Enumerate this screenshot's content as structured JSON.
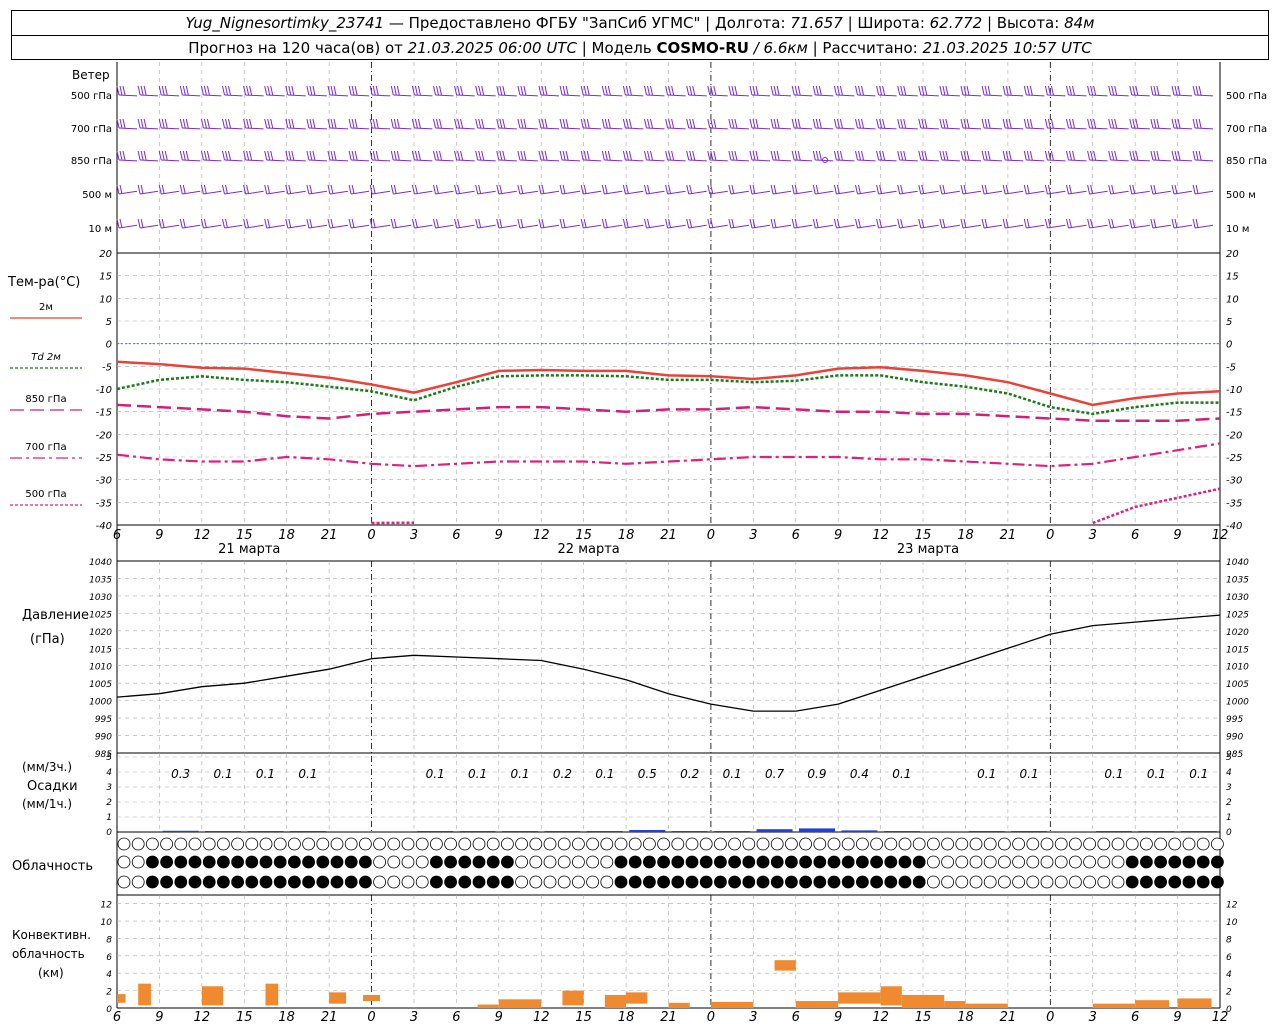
{
  "header": {
    "station": "Yug_Nignesortimky_23741",
    "dash": "—",
    "provided": "Предоставлено ФГБУ \"ЗапСиб УГМС\"",
    "lon_label": "Долгота:",
    "lon": "71.657",
    "lat_label": "Широта:",
    "lat": "62.772",
    "alt_label": "Высота:",
    "alt": "84м",
    "forecast_label": "Прогноз на 120 часа(ов) от",
    "forecast_from": "21.03.2025 06:00 UTC",
    "model_label": "| Модель",
    "model": "COSMO-RU",
    "resolution": "/ 6.6км",
    "calc_label": "| Рассчитано:",
    "calc_time": "21.03.2025 10:57 UTC"
  },
  "wind_panel": {
    "title": "Ветер",
    "levels": [
      "500 гПа",
      "700 гПа",
      "850 гПа",
      "500 м",
      "10 м"
    ],
    "colors": {
      "barb": "#7b2bd6"
    }
  },
  "x_axis": {
    "hour_labels": [
      "6",
      "9",
      "12",
      "15",
      "18",
      "21",
      "0",
      "3",
      "6",
      "9",
      "12",
      "15",
      "18",
      "21",
      "0",
      "3",
      "6",
      "9",
      "12",
      "15",
      "18",
      "21",
      "0",
      "3",
      "6",
      "9",
      "12"
    ],
    "day_labels": [
      "21 марта",
      "22 марта",
      "23 марта"
    ]
  },
  "temp_panel": {
    "title": "Тем-ра(°C)",
    "legend": [
      "2м",
      "Td  2м",
      "850 гПа",
      "700 гПа",
      "500 гПа"
    ],
    "y_ticks": [
      "20",
      "15",
      "10",
      "5",
      "0",
      "-5",
      "-10",
      "-15",
      "-20",
      "-25",
      "-30",
      "-35",
      "-40"
    ],
    "colors": {
      "t2m": "#e8423a",
      "td": "#1a7a1a",
      "t850": "#d0207a",
      "t700": "#e0207a",
      "t500": "#e0207a",
      "zero": "#3a5fd6"
    }
  },
  "pressure_panel": {
    "title": "Давление",
    "unit": "(гПа)",
    "y_ticks": [
      "1040",
      "1035",
      "1030",
      "1025",
      "1020",
      "1015",
      "1010",
      "1005",
      "1000",
      "995",
      "990",
      "985"
    ]
  },
  "precip_panel": {
    "unit_top": "(мм/3ч.)",
    "title": "Осадки",
    "unit_bottom": "(мм/1ч.)",
    "y_ticks": [
      "5",
      "4",
      "3",
      "2",
      "1",
      "0"
    ],
    "sums": [
      "0.3",
      "0.1",
      "0.1",
      "0.1",
      "0.1",
      "0.1",
      "0.1",
      "0.2",
      "0.1",
      "0.5",
      "0.2",
      "0.1",
      "0.7",
      "0.9",
      "0.4",
      "0.1",
      "0.1",
      "0.1",
      "0.1",
      "0.1",
      "0.1"
    ],
    "color": "#1f3fe0"
  },
  "cloud_panel": {
    "title": "Облачность"
  },
  "conv_panel": {
    "title1": "Конвективн.",
    "title2": "облачность",
    "unit": "(км)",
    "y_ticks": [
      "12",
      "10",
      "8",
      "6",
      "4",
      "2",
      "0"
    ],
    "color": "#f08a30"
  },
  "chart_data": {
    "type": "line",
    "x": [
      "21.03 06",
      "21.03 09",
      "21.03 12",
      "21.03 15",
      "21.03 18",
      "21.03 21",
      "22.03 00",
      "22.03 03",
      "22.03 06",
      "22.03 09",
      "22.03 12",
      "22.03 15",
      "22.03 18",
      "22.03 21",
      "23.03 00",
      "23.03 03",
      "23.03 06",
      "23.03 09",
      "23.03 12",
      "23.03 15",
      "23.03 18",
      "23.03 21",
      "24.03 00",
      "24.03 03",
      "24.03 06",
      "24.03 09",
      "24.03 12"
    ],
    "series": [
      {
        "name": "2м",
        "values": [
          -4,
          -4.5,
          -5.3,
          -5.5,
          -6.5,
          -7.5,
          -9,
          -10.8,
          -8.5,
          -6,
          -5.8,
          -6,
          -6,
          -7,
          -7.2,
          -7.8,
          -7,
          -5.5,
          -5.2,
          -6,
          -7,
          -8.5,
          -11,
          -13.5,
          -12,
          -11,
          -10.5
        ]
      },
      {
        "name": "Td  2м",
        "values": [
          -10,
          -8,
          -7.2,
          -8,
          -8.5,
          -9.5,
          -10.5,
          -12.5,
          -9.5,
          -7.2,
          -7,
          -7,
          -7.2,
          -8,
          -8,
          -8.5,
          -8.2,
          -7,
          -7,
          -8.5,
          -9.5,
          -11,
          -14,
          -15.5,
          -14,
          -13,
          -13
        ]
      },
      {
        "name": "850 гПа",
        "values": [
          -13.5,
          -14,
          -14.5,
          -15,
          -16,
          -16.5,
          -15.5,
          -15,
          -14.5,
          -14,
          -14,
          -14.5,
          -15,
          -14.5,
          -14.5,
          -14,
          -14.5,
          -15,
          -15,
          -15.5,
          -15.5,
          -16,
          -16.5,
          -17,
          -17,
          -17,
          -16.5
        ]
      },
      {
        "name": "700 гПа",
        "values": [
          -24.5,
          -25.5,
          -26,
          -26,
          -25,
          -25.5,
          -26.5,
          -27,
          -26.5,
          -26,
          -26,
          -26,
          -26.5,
          -26,
          -25.5,
          -25,
          -25,
          -25,
          -25.5,
          -25.5,
          -26,
          -26.5,
          -27,
          -26.5,
          -25,
          -23.5,
          -22
        ]
      },
      {
        "name": "500 гПа",
        "values": [
          null,
          null,
          null,
          null,
          null,
          null,
          -40,
          -39.5,
          null,
          null,
          null,
          null,
          null,
          null,
          null,
          null,
          null,
          null,
          null,
          null,
          null,
          null,
          null,
          -40,
          -36,
          -34,
          -32
        ]
      },
      {
        "name": "Давление",
        "values": [
          1001,
          1002,
          1004,
          1005,
          1007,
          1009,
          1012,
          1013,
          1012.5,
          1012,
          1011.5,
          1009,
          1006,
          1002,
          999,
          997,
          997,
          999,
          1003,
          1007,
          1011,
          1015,
          1019,
          1021.5,
          1022.5,
          1023.5,
          1024.5
        ]
      }
    ],
    "precip_3h": [
      0.3,
      0.1,
      0.1,
      0.1,
      0.1,
      0.1,
      0.1,
      0.2,
      0.1,
      0.5,
      0.2,
      0.1,
      0.7,
      0.9,
      0.4,
      0.1,
      0.1,
      0.1,
      0.1,
      0.1,
      0.1
    ],
    "y_ranges": {
      "temperature": [
        -40,
        20
      ],
      "pressure": [
        985,
        1040
      ],
      "precip": [
        0,
        5
      ],
      "convective": [
        0,
        13
      ]
    }
  }
}
